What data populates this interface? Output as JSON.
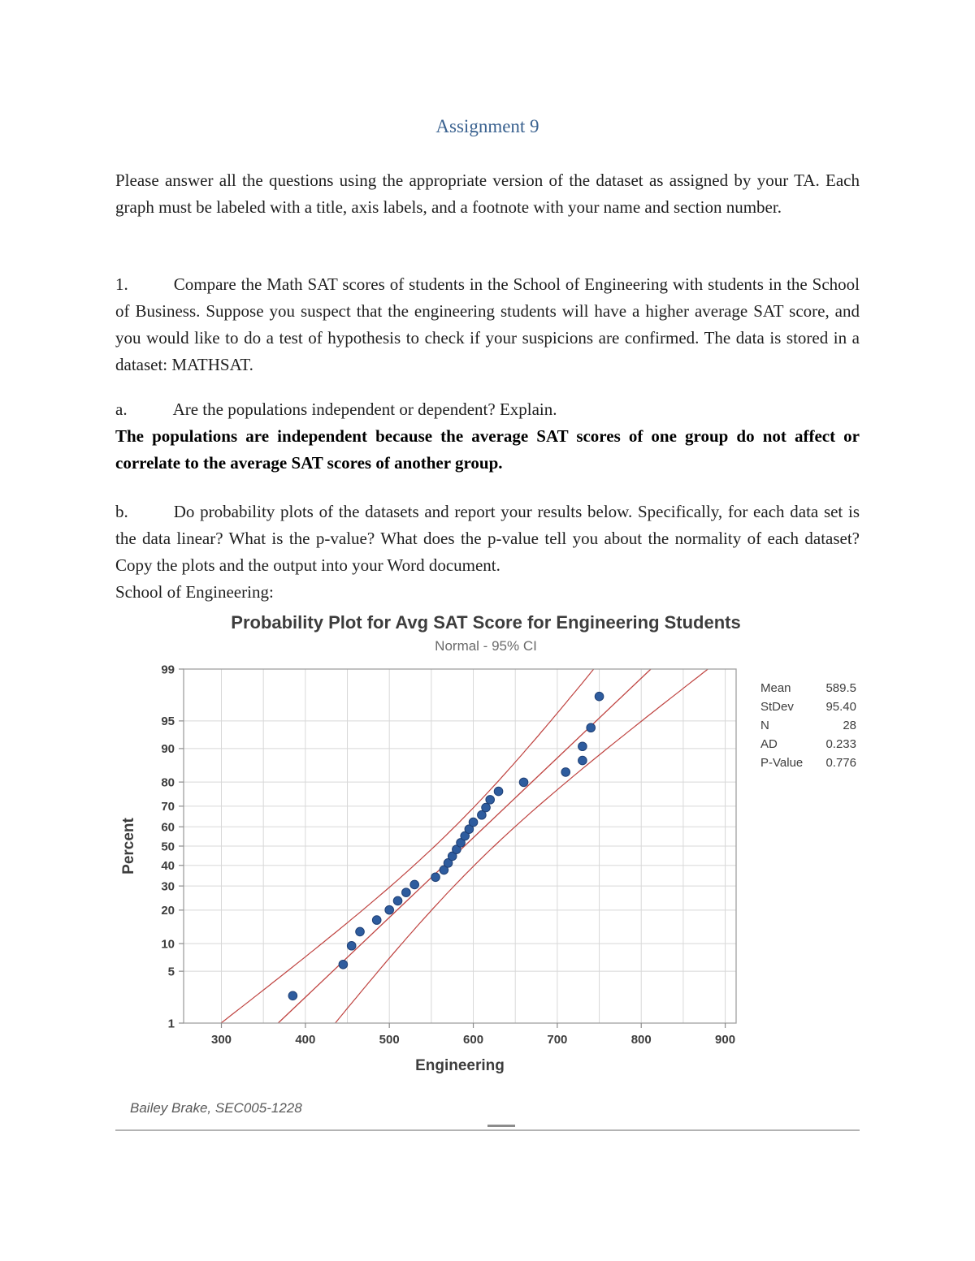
{
  "document": {
    "title": "Assignment 9",
    "intro": "Please answer all the questions using the appropriate version of the dataset as assigned by your TA.  Each graph must be labeled with a title, axis labels, and a footnote with your name and section number.",
    "q1": {
      "number": "1.",
      "text": "Compare the Math SAT scores of students in the School of Engineering with students in the School of Business.  Suppose you suspect that the engineering students will have a higher average SAT score, and you would like to do a test of hypothesis to check if your suspicions are confirmed.  The data is stored in a dataset: MATHSAT."
    },
    "qa": {
      "number": "a.",
      "text": "Are the populations independent or dependent?  Explain.",
      "answer": "The populations are independent because the average SAT scores of one group do not affect or correlate to the average SAT scores of another group."
    },
    "qb": {
      "number": "b.",
      "text": "Do probability plots of the datasets and report your results below.  Specifically, for each data set is the data linear?  What is the p-value?  What does the p-value tell you about the normality of each dataset? Copy the plots and the output into your Word document.",
      "followup": "School of Engineering:"
    }
  },
  "chart_data": {
    "type": "scatter",
    "title": "Probability Plot for Avg SAT Score for Engineering Students",
    "subtitle": "Normal - 95% CI",
    "xlabel": "Engineering",
    "ylabel": "Percent",
    "footnote": "Bailey Brake, SEC005-1228",
    "x_ticks": [
      300,
      400,
      500,
      600,
      700,
      800,
      900
    ],
    "x_grid_step": 50,
    "xlim": [
      255,
      913
    ],
    "y_ticks": [
      1,
      5,
      10,
      20,
      30,
      40,
      50,
      60,
      70,
      80,
      90,
      95,
      99
    ],
    "ylim_percent": [
      1,
      99
    ],
    "distribution": "normal",
    "ci_level": 0.95,
    "fit": {
      "mean": 589.5,
      "stdev": 95.4,
      "n": 28,
      "ad": 0.233,
      "p_value": 0.776
    },
    "stats_legend": [
      {
        "label": "Mean",
        "value": "589.5"
      },
      {
        "label": "StDev",
        "value": "95.40"
      },
      {
        "label": "N",
        "value": "28"
      },
      {
        "label": "AD",
        "value": "0.233"
      },
      {
        "label": "P-Value",
        "value": "0.776"
      }
    ],
    "points": {
      "x": [
        385,
        445,
        455,
        465,
        485,
        500,
        510,
        520,
        530,
        555,
        565,
        570,
        575,
        580,
        585,
        590,
        595,
        600,
        610,
        615,
        620,
        630,
        660,
        710,
        730,
        730,
        740,
        750
      ],
      "percent": [
        2.46,
        5.99,
        9.51,
        13.03,
        16.55,
        20.07,
        23.59,
        27.11,
        30.63,
        34.15,
        37.68,
        41.2,
        44.72,
        48.24,
        51.76,
        55.28,
        58.8,
        62.32,
        65.85,
        69.37,
        72.89,
        76.41,
        79.93,
        83.45,
        86.97,
        90.49,
        94.01,
        97.54
      ]
    },
    "colors": {
      "point": "#2e5c9e",
      "point_edge": "#1f4076",
      "fit_line": "#bf4340",
      "grid": "#d8d8d8",
      "border": "#a0a0a0",
      "text": "#3d3d3d",
      "subtext": "#6a6a6a"
    }
  }
}
